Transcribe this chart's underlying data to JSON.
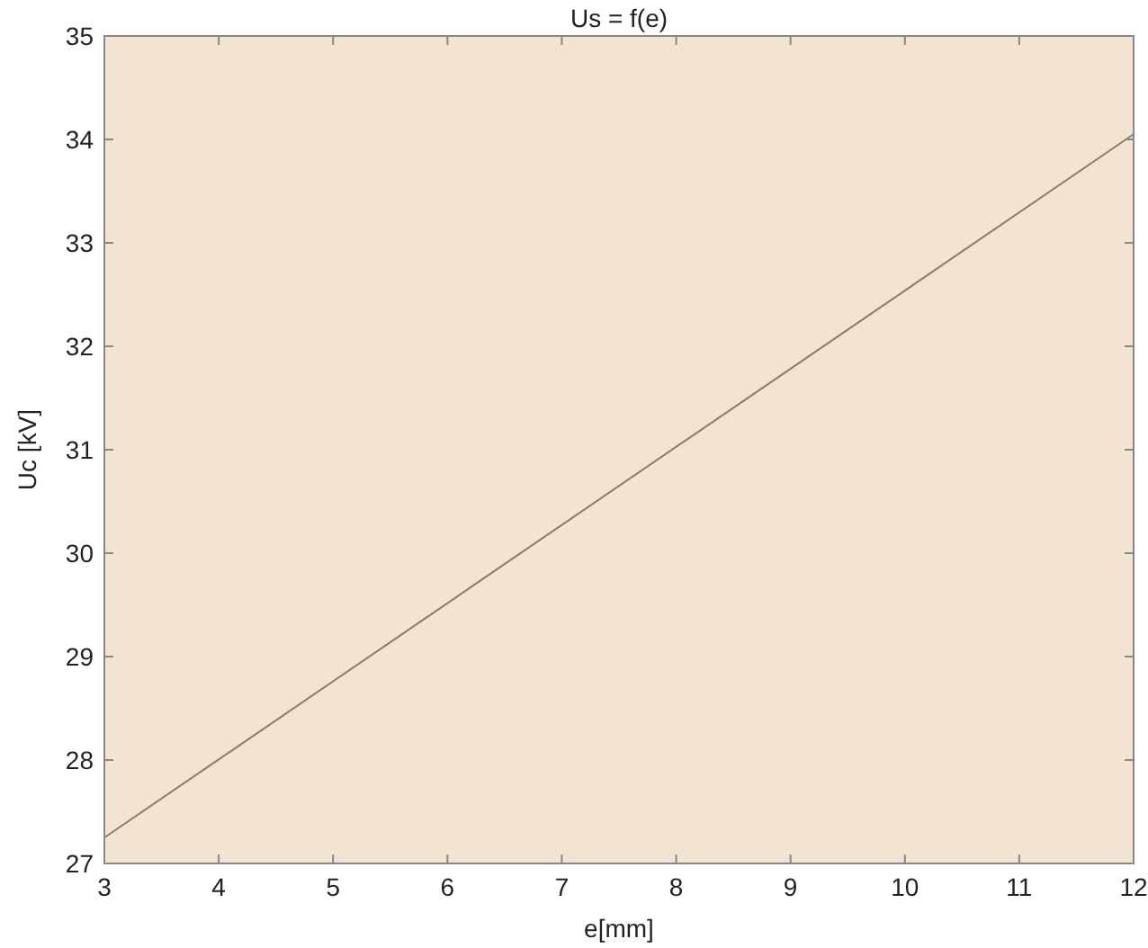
{
  "chart_data": {
    "type": "line",
    "title": "Us = f(e)",
    "xlabel": "e[mm]",
    "ylabel": "Uc [kV]",
    "x": [
      3,
      12
    ],
    "series": [
      {
        "color": "#8a7a70",
        "values": [
          27.25,
          34.05
        ]
      }
    ],
    "xlim": [
      3,
      12
    ],
    "ylim": [
      27,
      35
    ],
    "xticks": [
      3,
      4,
      5,
      6,
      7,
      8,
      9,
      10,
      11,
      12
    ],
    "yticks": [
      27,
      28,
      29,
      30,
      31,
      32,
      33,
      34,
      35
    ],
    "grid": false,
    "marker": "none",
    "line_style": "solid"
  }
}
